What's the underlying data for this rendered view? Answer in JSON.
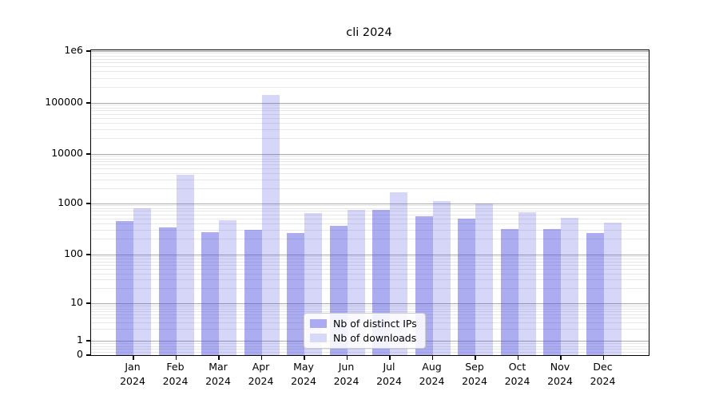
{
  "chart_data": {
    "type": "bar",
    "title": "cli 2024",
    "yscale": "symlog",
    "ylim": [
      0,
      1000000
    ],
    "grid": "horizontal major and minor gridlines",
    "legend_position": "lower center",
    "categories": [
      "Jan",
      "Feb",
      "Mar",
      "Apr",
      "May",
      "Jun",
      "Jul",
      "Aug",
      "Sep",
      "Oct",
      "Nov",
      "Dec"
    ],
    "category_year": "2024",
    "y_tick_labels": [
      "0",
      "1",
      "10",
      "100",
      "1000",
      "10000",
      "100000",
      "1e6"
    ],
    "y_tick_values": [
      0,
      1,
      10,
      100,
      1000,
      10000,
      100000,
      1000000
    ],
    "series": [
      {
        "name": "Nb of distinct IPs",
        "color": "#ababf1",
        "fill": "rgba(70,70,225,0.45)",
        "values": [
          450,
          340,
          270,
          310,
          260,
          370,
          760,
          570,
          510,
          320,
          320,
          260
        ]
      },
      {
        "name": "Nb of downloads",
        "color": "#d8d8f7",
        "fill": "rgba(70,70,225,0.22)",
        "values": [
          820,
          3800,
          475,
          145000,
          640,
          760,
          1700,
          1100,
          1000,
          680,
          530,
          430
        ]
      }
    ]
  }
}
